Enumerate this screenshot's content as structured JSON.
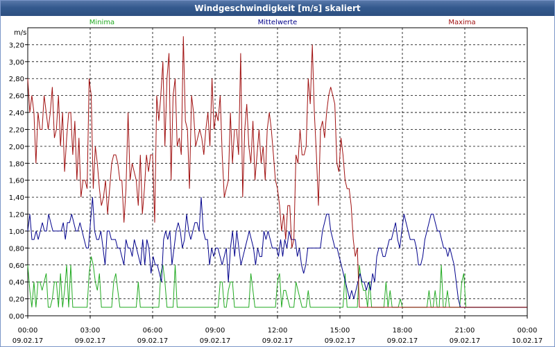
{
  "window": {
    "title": "Windgeschwindigkeit [m/s] skaliert"
  },
  "colors": {
    "minima": "#22aa22",
    "mittelwerte": "#00008b",
    "maxima": "#a01010",
    "grid": "#000000",
    "titlebar": "#345a8e"
  },
  "chart_data": {
    "type": "line",
    "ylabel": "m/s",
    "ylim": [
      0,
      3.4
    ],
    "yticks": [
      "0,00",
      "0,20",
      "0,40",
      "0,60",
      "0,80",
      "1,00",
      "1,20",
      "1,40",
      "1,60",
      "1,80",
      "2,00",
      "2,20",
      "2,40",
      "2,60",
      "2,80",
      "3,00",
      "3,20"
    ],
    "xlim": [
      0,
      24
    ],
    "xticks": [
      {
        "time": "00:00",
        "date": "09.02.17"
      },
      {
        "time": "03:00",
        "date": "09.02.17"
      },
      {
        "time": "06:00",
        "date": "09.02.17"
      },
      {
        "time": "09:00",
        "date": "09.02.17"
      },
      {
        "time": "12:00",
        "date": "09.02.17"
      },
      {
        "time": "15:00",
        "date": "09.02.17"
      },
      {
        "time": "18:00",
        "date": "09.02.17"
      },
      {
        "time": "21:00",
        "date": "09.02.17"
      },
      {
        "time": "00:00",
        "date": "10.02.17"
      }
    ],
    "grid": true,
    "legend_position": "top",
    "series": [
      {
        "name": "Minima",
        "color": "#22aa22",
        "values": [
          0.6,
          0.3,
          0.1,
          0.4,
          0.1,
          0.4,
          0.4,
          0.3,
          0.4,
          0.5,
          0.1,
          0.1,
          0.2,
          0.4,
          0.4,
          0.1,
          0.5,
          0.1,
          0.3,
          0.6,
          0.1,
          0.6,
          0.1,
          0.1,
          0.1,
          0.1,
          0.1,
          0.1,
          0.1,
          0.1,
          0.5,
          0.7,
          0.6,
          0.4,
          0.3,
          0.5,
          0.1,
          0.1,
          0.1,
          0.1,
          0.1,
          0.1,
          0.4,
          0.5,
          0.3,
          0.1,
          0.1,
          0.1,
          0.1,
          0.1,
          0.1,
          0.1,
          0.1,
          0.1,
          0.4,
          0.1,
          0.1,
          0.1,
          0.1,
          0.1,
          0.1,
          0.1,
          0.1,
          0.1,
          0.1,
          0.5,
          0.6,
          0.4,
          0.1,
          0.1,
          0.1,
          0.1,
          0.6,
          0.1,
          0.1,
          0.1,
          0.1,
          0.1,
          0.1,
          0.1,
          0.1,
          0.1,
          0.1,
          0.1,
          0.1,
          0.1,
          0.1,
          0.1,
          0.1,
          0.1,
          0.1,
          0.1,
          0.1,
          0.1,
          0.4,
          0.4,
          0.1,
          0.1,
          0.3,
          0.4,
          0.4,
          0.1,
          0.1,
          0.1,
          0.1,
          0.1,
          0.1,
          0.1,
          0.1,
          0.5,
          0.3,
          0.1,
          0.1,
          0.1,
          0.1,
          0.1,
          0.1,
          0.1,
          0.1,
          0.1,
          0.1,
          0.1,
          0.4,
          0.5,
          0.1,
          0.3,
          0.3,
          0.2,
          0.1,
          0.1,
          0.1,
          0.4,
          0.3,
          0.2,
          0.1,
          0.1,
          0.1,
          0.3,
          0.1,
          0.1,
          0.1,
          0.1,
          0.1,
          0.1,
          0.1,
          0.1,
          0.1,
          0.1,
          0.1,
          0.1,
          0.1,
          0.1,
          0.1,
          0.1,
          0.1,
          0.5,
          0.1,
          0.1,
          0.1,
          0.1,
          0.1,
          0.1,
          0.6,
          0.4,
          0.3,
          0.3,
          0.1,
          0.4,
          0.1,
          0.1,
          0.1,
          0.1,
          0.1,
          0.1,
          0.1,
          0.4,
          0.1,
          0.3,
          0.1,
          0.1,
          0.1,
          0.1,
          0.2,
          0.1,
          0.1,
          0.1,
          0.1,
          0.1,
          0.1,
          0.1,
          0.1,
          0.1,
          0.1,
          0.1,
          0.1,
          0.1,
          0.3,
          0.1,
          0.1,
          0.3,
          0.1,
          0.1,
          0.6,
          0.1,
          0.1,
          0.3,
          0.1,
          0.1,
          0.1,
          0.1,
          0.1,
          0.1,
          0.4,
          0.5,
          0.1,
          0.1,
          0.1,
          0.1,
          0.1,
          0.1,
          0.1,
          0.1,
          0.1,
          0.1,
          0.1,
          0.1,
          0.1,
          0.1,
          0.1,
          0.1,
          0.1,
          0.1,
          0.1,
          0.1,
          0.1,
          0.1,
          0.1,
          0.1,
          0.1,
          0.1,
          0.1,
          0.1,
          0.1,
          0.1,
          0.1
        ]
      },
      {
        "name": "Mittelwerte",
        "color": "#00008b",
        "values": [
          1.0,
          1.2,
          0.9,
          0.9,
          1.0,
          0.9,
          1.0,
          1.1,
          1.0,
          1.0,
          1.2,
          1.1,
          1.0,
          1.0,
          1.0,
          1.0,
          1.0,
          1.1,
          0.9,
          1.1,
          1.1,
          1.2,
          1.1,
          1.0,
          1.0,
          1.1,
          1.0,
          0.9,
          0.8,
          0.8,
          1.1,
          1.4,
          1.0,
          0.9,
          0.9,
          1.0,
          0.8,
          0.6,
          1.0,
          1.0,
          0.9,
          0.9,
          0.9,
          0.8,
          0.8,
          0.7,
          0.6,
          0.9,
          0.8,
          0.8,
          0.7,
          0.9,
          0.8,
          0.7,
          0.6,
          0.9,
          0.6,
          0.9,
          0.8,
          0.5,
          0.7,
          0.6,
          0.6,
          0.5,
          0.4,
          0.9,
          1.0,
          0.9,
          1.0,
          0.6,
          0.8,
          1.0,
          1.1,
          1.0,
          0.8,
          0.9,
          1.2,
          1.0,
          0.9,
          1.0,
          1.1,
          1.1,
          1.0,
          1.4,
          1.0,
          0.9,
          0.9,
          0.6,
          0.8,
          0.7,
          0.8,
          0.8,
          0.7,
          0.6,
          0.7,
          0.8,
          0.4,
          0.8,
          1.0,
          0.7,
          1.0,
          0.8,
          0.6,
          0.7,
          0.8,
          0.9,
          1.0,
          0.9,
          0.8,
          0.6,
          0.8,
          0.7,
          0.7,
          1.0,
          0.9,
          1.0,
          0.9,
          0.8,
          0.8,
          0.8,
          0.7,
          0.9,
          0.7,
          0.9,
          0.8,
          1.0,
          0.9,
          0.9,
          0.9,
          0.7,
          0.8,
          0.6,
          0.5,
          0.6,
          0.8,
          0.8,
          0.8,
          0.8,
          0.8,
          0.8,
          0.8,
          1.0,
          1.1,
          1.2,
          1.2,
          1.0,
          0.9,
          0.8,
          0.8,
          0.7,
          0.6,
          0.5,
          0.4,
          0.3,
          0.2,
          0.3,
          0.2,
          0.3,
          0.4,
          0.5,
          0.4,
          0.4,
          0.3,
          0.4,
          0.3,
          0.5,
          0.4,
          0.7,
          0.8,
          0.8,
          0.7,
          0.7,
          0.8,
          0.9,
          0.9,
          1.0,
          1.1,
          0.9,
          0.8,
          1.0,
          1.2,
          1.1,
          1.0,
          0.9,
          0.9,
          0.9,
          0.8,
          0.6,
          0.6,
          0.7,
          0.9,
          1.0,
          1.1,
          1.2,
          1.2,
          1.1,
          1.0,
          1.0,
          0.9,
          0.8,
          0.8,
          0.7,
          0.8,
          0.7,
          0.6,
          0.4,
          0.2,
          0.1,
          0.1,
          0.1,
          0.1,
          0.1,
          0.1,
          0.1,
          0.1,
          0.1,
          0.1,
          0.1,
          0.1,
          0.1,
          0.1,
          0.1,
          0.1,
          0.1,
          0.1,
          0.1,
          0.1,
          0.1,
          0.1,
          0.1,
          0.1,
          0.1,
          0.1,
          0.1,
          0.1,
          0.1,
          0.1,
          0.1,
          0.1,
          0.1
        ]
      },
      {
        "name": "Maxima",
        "color": "#a01010",
        "values": [
          2.8,
          2.4,
          2.6,
          2.4,
          1.8,
          2.4,
          2.2,
          2.2,
          2.6,
          2.4,
          2.2,
          2.4,
          2.7,
          2.1,
          2.2,
          2.6,
          2.0,
          2.4,
          1.7,
          2.1,
          2.4,
          2.4,
          1.9,
          2.3,
          1.6,
          2.1,
          1.4,
          1.6,
          1.6,
          1.5,
          2.8,
          2.6,
          1.5,
          2.0,
          1.8,
          1.5,
          1.3,
          1.4,
          1.6,
          1.2,
          1.5,
          1.8,
          1.9,
          1.9,
          1.8,
          1.6,
          1.6,
          1.1,
          1.5,
          2.4,
          1.6,
          1.8,
          1.7,
          1.6,
          1.3,
          1.9,
          1.2,
          1.5,
          1.9,
          1.7,
          1.9,
          1.9,
          1.1,
          2.6,
          2.3,
          2.6,
          3.0,
          2.0,
          2.8,
          3.1,
          1.6,
          2.6,
          2.8,
          2.0,
          2.1,
          1.9,
          3.3,
          2.3,
          2.2,
          1.5,
          2.6,
          2.4,
          2.0,
          2.1,
          2.2,
          2.1,
          1.9,
          2.2,
          2.4,
          2.0,
          2.8,
          2.2,
          2.4,
          2.3,
          2.6,
          1.9,
          1.4,
          1.5,
          1.6,
          2.4,
          1.8,
          2.2,
          2.2,
          1.9,
          3.1,
          1.4,
          2.2,
          2.5,
          2.0,
          1.8,
          2.3,
          1.6,
          1.9,
          2.2,
          1.8,
          2.0,
          1.6,
          2.2,
          2.4,
          2.2,
          1.9,
          1.6,
          1.5,
          1.3,
          1.0,
          1.2,
          0.9,
          1.3,
          1.3,
          0.8,
          0.9,
          1.9,
          1.8,
          2.2,
          1.9,
          1.9,
          2.0,
          2.8,
          2.5,
          3.2,
          2.4,
          1.9,
          1.3,
          2.2,
          2.3,
          2.1,
          2.4,
          2.6,
          2.7,
          2.6,
          2.5,
          1.8,
          1.7,
          2.1,
          1.9,
          1.6,
          1.5,
          1.5,
          1.3,
          0.9,
          0.7,
          0.8,
          0.1,
          0.1,
          0.1,
          0.1,
          0.1,
          0.1,
          0.1,
          0.1,
          0.1,
          0.1,
          0.1,
          0.1,
          0.1,
          0.1,
          0.1,
          0.1,
          0.1,
          0.1,
          0.1,
          0.1,
          0.1,
          0.1,
          0.1,
          0.1,
          0.1,
          0.1,
          0.1,
          0.1,
          0.1,
          0.1,
          0.1,
          0.1,
          0.1,
          0.1,
          0.1,
          0.1,
          0.1,
          0.1,
          0.1,
          0.1,
          0.1,
          0.1,
          0.1,
          0.1,
          0.1,
          0.1,
          0.1,
          0.1,
          0.1,
          0.1,
          0.1,
          0.1,
          0.1,
          0.1,
          0.1,
          0.1,
          0.1,
          0.1,
          0.1,
          0.1,
          0.1,
          0.1,
          0.1,
          0.1,
          0.1,
          0.1,
          0.1,
          0.1,
          0.1,
          0.1,
          0.1,
          0.1,
          0.1,
          0.1,
          0.1,
          0.1,
          0.1,
          0.1,
          0.1,
          0.1,
          0.1,
          0.1,
          0.1
        ]
      }
    ]
  }
}
